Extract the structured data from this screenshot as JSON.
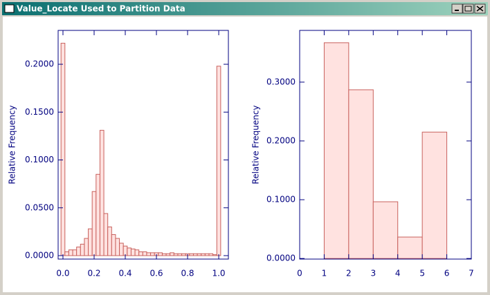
{
  "window": {
    "title": "Value_Locate Used to Partition Data"
  },
  "chart_data": [
    {
      "type": "histogram",
      "ylabel": "Relative Frequency",
      "bins": [
        -0.0125,
        0.0125,
        0.0375,
        0.0625,
        0.0875,
        0.1125,
        0.1375,
        0.1625,
        0.1875,
        0.2125,
        0.2375,
        0.2625,
        0.2875,
        0.3125,
        0.3375,
        0.3625,
        0.3875,
        0.4125,
        0.4375,
        0.4625,
        0.4875,
        0.5125,
        0.5375,
        0.5625,
        0.5875,
        0.6125,
        0.6375,
        0.6625,
        0.6875,
        0.7125,
        0.7375,
        0.7625,
        0.7875,
        0.8125,
        0.8375,
        0.8625,
        0.8875,
        0.9125,
        0.9375,
        0.9625,
        0.9875,
        1.0125
      ],
      "values": [
        0.222,
        0.004,
        0.006,
        0.006,
        0.009,
        0.012,
        0.018,
        0.028,
        0.067,
        0.085,
        0.131,
        0.044,
        0.03,
        0.022,
        0.018,
        0.013,
        0.01,
        0.008,
        0.007,
        0.006,
        0.004,
        0.004,
        0.003,
        0.003,
        0.003,
        0.003,
        0.002,
        0.002,
        0.003,
        0.002,
        0.002,
        0.002,
        0.002,
        0.002,
        0.002,
        0.002,
        0.002,
        0.002,
        0.002,
        0.001,
        0.198
      ],
      "color": "#ffe2e0",
      "edgecolor": "#c8605c",
      "xlim": [
        -0.031,
        1.062
      ],
      "ylim": [
        -0.0036,
        0.2354
      ],
      "xticks": [
        {
          "value": 0,
          "label": "0.0"
        },
        {
          "value": 0.2,
          "label": "0.2"
        },
        {
          "value": 0.4,
          "label": "0.4"
        },
        {
          "value": 0.6,
          "label": "0.6"
        },
        {
          "value": 0.8,
          "label": "0.8"
        },
        {
          "value": 1,
          "label": "1.0"
        }
      ],
      "yticks": [
        {
          "value": 0,
          "label": "0.0000"
        },
        {
          "value": 0.05,
          "label": "0.0500"
        },
        {
          "value": 0.1,
          "label": "0.1000"
        },
        {
          "value": 0.15,
          "label": "0.1500"
        },
        {
          "value": 0.2,
          "label": "0.2000"
        }
      ]
    },
    {
      "type": "histogram",
      "ylabel": "Relative Frequency",
      "bins": [
        1,
        2,
        3,
        4,
        5,
        6
      ],
      "values": [
        0.367,
        0.287,
        0.0965,
        0.0365,
        0.215
      ],
      "color": "#ffe2e0",
      "edgecolor": "#c8605c",
      "xlim": [
        0,
        7
      ],
      "ylim": [
        -0.001,
        0.388
      ],
      "xticks": [
        0,
        1,
        2,
        3,
        4,
        5,
        6,
        7
      ],
      "yticks": [
        {
          "value": 0,
          "label": "0.0000"
        },
        {
          "value": 0.1,
          "label": "0.1000"
        },
        {
          "value": 0.2,
          "label": "0.2000"
        },
        {
          "value": 0.3,
          "label": "0.3000"
        }
      ]
    }
  ]
}
